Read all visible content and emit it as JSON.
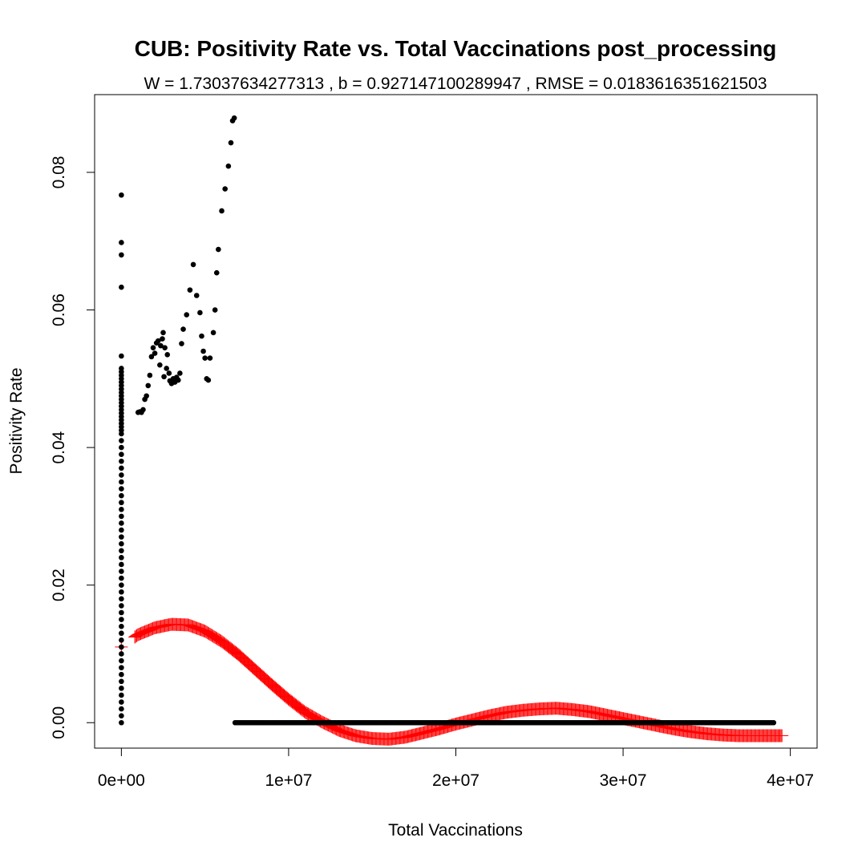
{
  "chart_data": {
    "type": "scatter",
    "title": "CUB: Positivity Rate vs. Total Vaccinations post_processing",
    "subtitle": "W = 1.73037634277313 , b = 0.927147100289947 , RMSE = 0.0183616351621503",
    "xlabel": "Total Vaccinations",
    "ylabel": "Positivity Rate",
    "xlim": [
      -1600000,
      41600000
    ],
    "ylim": [
      -0.0037,
      0.0913
    ],
    "x_ticks": [
      0,
      10000000,
      20000000,
      30000000,
      40000000
    ],
    "x_tick_labels": [
      "0e+00",
      "1e+07",
      "2e+07",
      "3e+07",
      "4e+07"
    ],
    "y_ticks": [
      0,
      0.02,
      0.04,
      0.06,
      0.08
    ],
    "y_tick_labels": [
      "0.00",
      "0.02",
      "0.04",
      "0.06",
      "0.08"
    ],
    "grid": false,
    "legend": "none",
    "series": [
      {
        "marker": "filled-circle",
        "color": "#000000",
        "points": [
          [
            0,
            0.0767
          ],
          [
            0,
            0.0698
          ],
          [
            0,
            0.068
          ],
          [
            0,
            0.0633
          ],
          [
            0,
            0.0533
          ],
          [
            0,
            0.0515
          ],
          [
            0,
            0.051
          ],
          [
            0,
            0.0505
          ],
          [
            0,
            0.05
          ],
          [
            0,
            0.0495
          ],
          [
            0,
            0.049
          ],
          [
            0,
            0.0485
          ],
          [
            0,
            0.048
          ],
          [
            0,
            0.0475
          ],
          [
            0,
            0.047
          ],
          [
            0,
            0.0465
          ],
          [
            0,
            0.046
          ],
          [
            0,
            0.0455
          ],
          [
            0,
            0.045
          ],
          [
            0,
            0.0445
          ],
          [
            0,
            0.044
          ],
          [
            0,
            0.0435
          ],
          [
            0,
            0.043
          ],
          [
            0,
            0.0425
          ],
          [
            0,
            0.042
          ],
          [
            0,
            0.041
          ],
          [
            0,
            0.04
          ],
          [
            0,
            0.039
          ],
          [
            0,
            0.038
          ],
          [
            0,
            0.037
          ],
          [
            0,
            0.036
          ],
          [
            0,
            0.035
          ],
          [
            0,
            0.034
          ],
          [
            0,
            0.033
          ],
          [
            0,
            0.032
          ],
          [
            0,
            0.031
          ],
          [
            0,
            0.03
          ],
          [
            0,
            0.029
          ],
          [
            0,
            0.028
          ],
          [
            0,
            0.027
          ],
          [
            0,
            0.026
          ],
          [
            0,
            0.025
          ],
          [
            0,
            0.024
          ],
          [
            0,
            0.023
          ],
          [
            0,
            0.022
          ],
          [
            0,
            0.021
          ],
          [
            0,
            0.02
          ],
          [
            0,
            0.019
          ],
          [
            0,
            0.018
          ],
          [
            0,
            0.017
          ],
          [
            0,
            0.016
          ],
          [
            0,
            0.015
          ],
          [
            0,
            0.014
          ],
          [
            0,
            0.013
          ],
          [
            0,
            0.012
          ],
          [
            0,
            0.011
          ],
          [
            0,
            0.01
          ],
          [
            0,
            0.009
          ],
          [
            0,
            0.008
          ],
          [
            0,
            0.007
          ],
          [
            0,
            0.006
          ],
          [
            0,
            0.005
          ],
          [
            0,
            0.004
          ],
          [
            0,
            0.003
          ],
          [
            0,
            0.002
          ],
          [
            0,
            0.001
          ],
          [
            0,
            0.0
          ],
          [
            1000000,
            0.0451
          ],
          [
            1100000,
            0.0452
          ],
          [
            1200000,
            0.0451
          ],
          [
            1300000,
            0.0455
          ],
          [
            1400000,
            0.047
          ],
          [
            1500000,
            0.0475
          ],
          [
            1600000,
            0.049
          ],
          [
            1700000,
            0.0505
          ],
          [
            1800000,
            0.0532
          ],
          [
            1900000,
            0.0545
          ],
          [
            2000000,
            0.0537
          ],
          [
            2100000,
            0.0552
          ],
          [
            2200000,
            0.0555
          ],
          [
            2300000,
            0.052
          ],
          [
            2350000,
            0.0548
          ],
          [
            2450000,
            0.0558
          ],
          [
            2500000,
            0.0567
          ],
          [
            2550000,
            0.0503
          ],
          [
            2600000,
            0.0545
          ],
          [
            2700000,
            0.0515
          ],
          [
            2750000,
            0.0535
          ],
          [
            2850000,
            0.0508
          ],
          [
            2900000,
            0.0497
          ],
          [
            3000000,
            0.0493
          ],
          [
            3100000,
            0.05
          ],
          [
            3200000,
            0.0495
          ],
          [
            3300000,
            0.0502
          ],
          [
            3400000,
            0.0498
          ],
          [
            3500000,
            0.0508
          ],
          [
            3600000,
            0.0551
          ],
          [
            3700000,
            0.0572
          ],
          [
            3900000,
            0.0593
          ],
          [
            4100000,
            0.0629
          ],
          [
            4300000,
            0.0666
          ],
          [
            4500000,
            0.0621
          ],
          [
            4700000,
            0.0596
          ],
          [
            4800000,
            0.0562
          ],
          [
            4900000,
            0.054
          ],
          [
            5000000,
            0.053
          ],
          [
            5100000,
            0.05
          ],
          [
            5200000,
            0.0498
          ],
          [
            5300000,
            0.053
          ],
          [
            5500000,
            0.0567
          ],
          [
            5600000,
            0.06
          ],
          [
            5700000,
            0.0654
          ],
          [
            5800000,
            0.0688
          ],
          [
            6000000,
            0.0744
          ],
          [
            6200000,
            0.0776
          ],
          [
            6400000,
            0.0809
          ],
          [
            6550000,
            0.0843
          ],
          [
            6650000,
            0.0875
          ],
          [
            6750000,
            0.0879
          ]
        ],
        "zero_run_x": [
          6800000,
          39000000,
          100000
        ]
      },
      {
        "marker": "plus",
        "color": "#ff0000",
        "zero_fit_value": 0.011,
        "fit_curve_x": [
          800000,
          39500000,
          60000
        ],
        "curve": [
          [
            0,
            0.011
          ],
          [
            1000000,
            0.0128
          ],
          [
            2000000,
            0.0138
          ],
          [
            3000000,
            0.0143
          ],
          [
            4000000,
            0.0142
          ],
          [
            5000000,
            0.0133
          ],
          [
            6000000,
            0.0118
          ],
          [
            7000000,
            0.0099
          ],
          [
            8000000,
            0.0077
          ],
          [
            9000000,
            0.0055
          ],
          [
            10000000,
            0.0034
          ],
          [
            11000000,
            0.0015
          ],
          [
            12000000,
            0.0001
          ],
          [
            13000000,
            -0.0011
          ],
          [
            14000000,
            -0.0019
          ],
          [
            15000000,
            -0.0023
          ],
          [
            16000000,
            -0.0024
          ],
          [
            17000000,
            -0.0021
          ],
          [
            18000000,
            -0.0015
          ],
          [
            19000000,
            -0.0009
          ],
          [
            20000000,
            -0.0002
          ],
          [
            21000000,
            0.0004
          ],
          [
            22000000,
            0.001
          ],
          [
            23000000,
            0.0015
          ],
          [
            24000000,
            0.0018
          ],
          [
            25000000,
            0.002
          ],
          [
            26000000,
            0.0021
          ],
          [
            27000000,
            0.0019
          ],
          [
            28000000,
            0.0016
          ],
          [
            29000000,
            0.0011
          ],
          [
            30000000,
            0.0006
          ],
          [
            31000000,
            0.0001
          ],
          [
            32000000,
            -0.0004
          ],
          [
            33000000,
            -0.0009
          ],
          [
            34000000,
            -0.0013
          ],
          [
            35000000,
            -0.0016
          ],
          [
            36000000,
            -0.0018
          ],
          [
            37000000,
            -0.0019
          ],
          [
            38000000,
            -0.0019
          ],
          [
            39000000,
            -0.0019
          ],
          [
            40000000,
            -0.0019
          ]
        ]
      }
    ]
  }
}
